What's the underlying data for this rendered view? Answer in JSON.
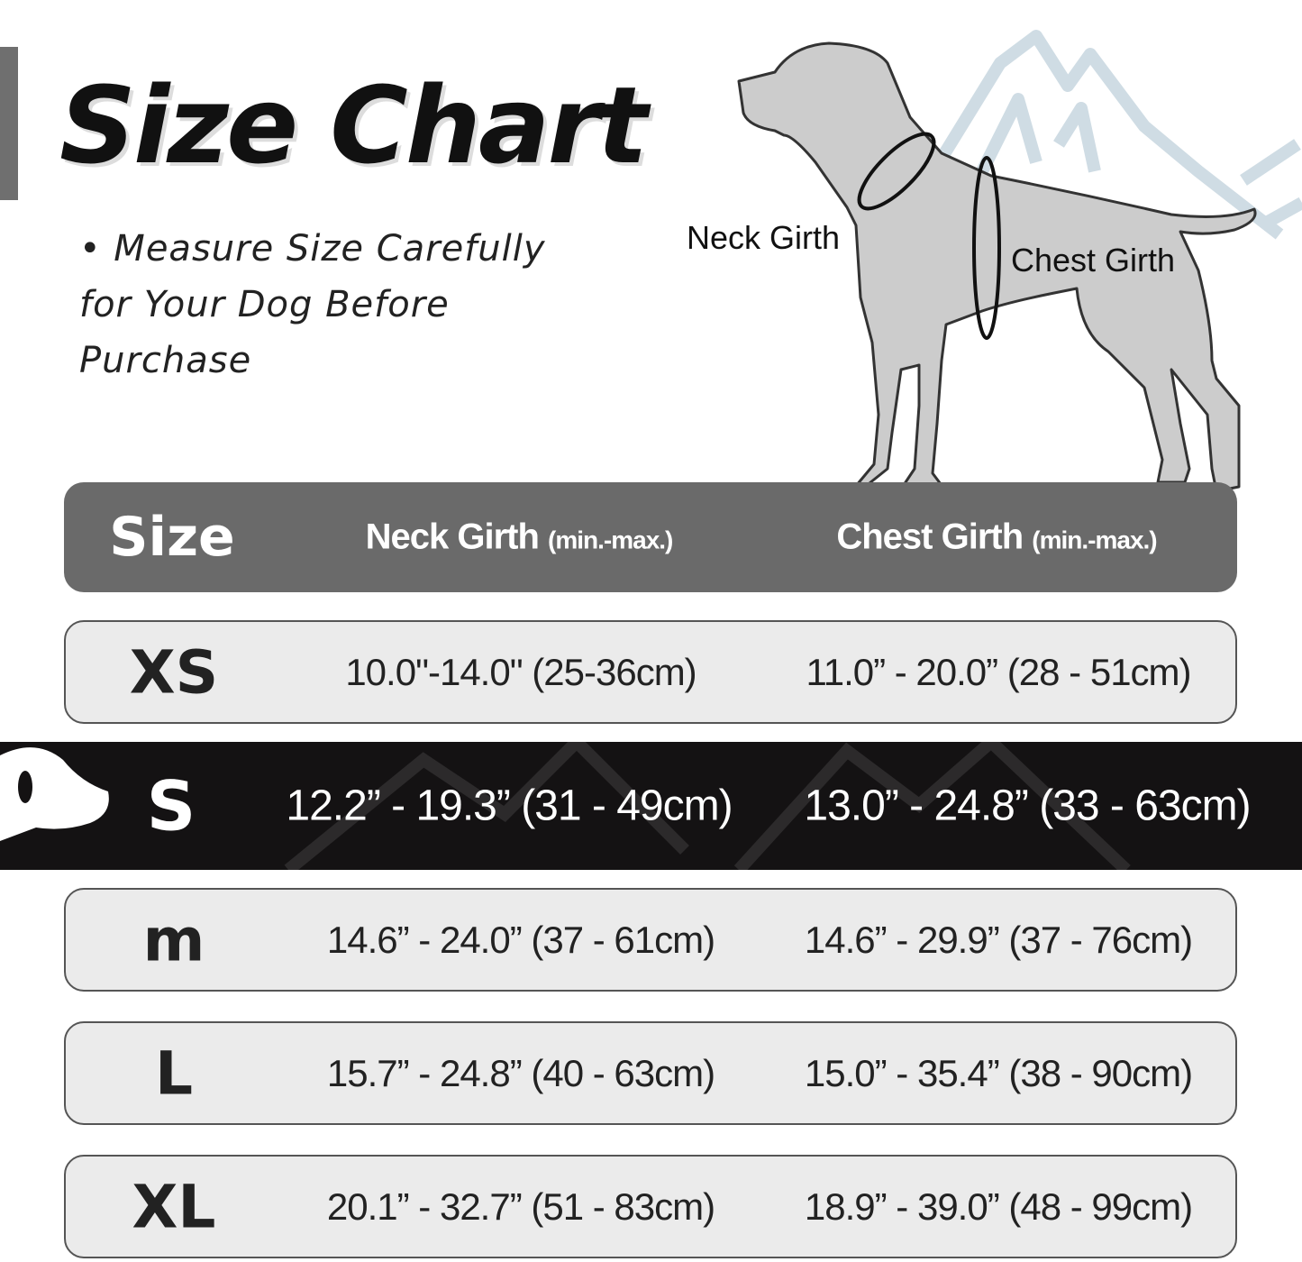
{
  "title": "Size Chart",
  "subtitle": [
    "• Measure Size Carefully",
    "for Your Dog Before",
    "Purchase"
  ],
  "diagram": {
    "neck_label": "Neck Girth",
    "chest_label": "Chest Girth"
  },
  "colors": {
    "header_bg": "#6a6a6a",
    "row_bg": "#ebebeb",
    "selected_bg": "#141213",
    "mountain": "#cfdce4",
    "dog": "#cccccc"
  },
  "table": {
    "headers": {
      "size": "Size",
      "neck": "Neck Girth",
      "neck_note": "(min.-max.)",
      "chest": "Chest Girth",
      "chest_note": "(min.-max.)"
    },
    "rows": [
      {
        "size": "XS",
        "neck": "10.0\"-14.0\" (25-36cm)",
        "chest": "11.0” - 20.0” (28 - 51cm)"
      },
      {
        "size": "S",
        "neck": "12.2” - 19.3” (31 - 49cm)",
        "chest": "13.0” - 24.8” (33 - 63cm)",
        "highlighted": true
      },
      {
        "size": "m",
        "neck": "14.6” - 24.0” (37 - 61cm)",
        "chest": "14.6” - 29.9” (37 - 76cm)"
      },
      {
        "size": "L",
        "neck": "15.7” - 24.8” (40 - 63cm)",
        "chest": "15.0” - 35.4” (38 - 90cm)"
      },
      {
        "size": "XL",
        "neck": "20.1” - 32.7” (51 - 83cm)",
        "chest": "18.9” - 39.0” (48 - 99cm)"
      }
    ]
  }
}
